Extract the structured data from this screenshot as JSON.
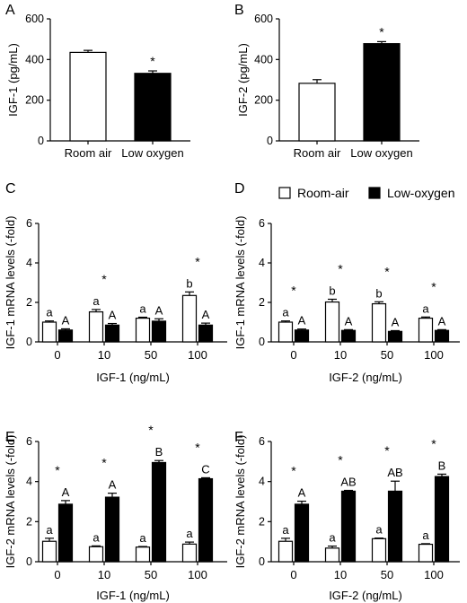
{
  "legend": {
    "items": [
      {
        "label": "Room-air",
        "color": "#ffffff"
      },
      {
        "label": "Low-oxygen",
        "color": "#000000"
      }
    ]
  },
  "chart_data": [
    {
      "panel": "A",
      "type": "bar",
      "categories": [
        "Room air",
        "Low oxygen"
      ],
      "values": [
        435,
        332
      ],
      "errors": [
        10,
        12
      ],
      "colors": [
        "#ffffff",
        "#000000"
      ],
      "ylabel": "IGF-1 (pg/mL)",
      "xlabel": "",
      "ylim": [
        0,
        600
      ],
      "yticks": [
        0,
        200,
        400,
        600
      ],
      "significance": [
        "",
        "*"
      ]
    },
    {
      "panel": "B",
      "type": "bar",
      "categories": [
        "Room air",
        "Low oxygen"
      ],
      "values": [
        283,
        478
      ],
      "errors": [
        18,
        10
      ],
      "colors": [
        "#ffffff",
        "#000000"
      ],
      "ylabel": "IGF-2 (pg/mL)",
      "xlabel": "",
      "ylim": [
        0,
        600
      ],
      "yticks": [
        0,
        200,
        400,
        600
      ],
      "significance": [
        "",
        "*"
      ]
    },
    {
      "panel": "C",
      "type": "bar",
      "categories": [
        "0",
        "10",
        "50",
        "100"
      ],
      "xlabel": "IGF-1 (ng/mL)",
      "ylabel": "IGF-1 mRNA levels (-fold)",
      "ylim": [
        0,
        6
      ],
      "yticks": [
        0,
        2,
        4,
        6
      ],
      "series": [
        {
          "name": "Room-air",
          "values": [
            1.0,
            1.52,
            1.2,
            2.35
          ],
          "errors": [
            0.06,
            0.12,
            0.05,
            0.18
          ],
          "letters": [
            "a",
            "a",
            "a",
            "b"
          ]
        },
        {
          "name": "Low-oxygen",
          "values": [
            0.6,
            0.85,
            1.05,
            0.85
          ],
          "errors": [
            0.06,
            0.08,
            0.12,
            0.1
          ],
          "letters": [
            "A",
            "A",
            "A",
            "A"
          ]
        }
      ],
      "significance": [
        "",
        "*",
        "",
        "*"
      ]
    },
    {
      "panel": "D",
      "type": "bar",
      "categories": [
        "0",
        "10",
        "50",
        "100"
      ],
      "xlabel": "IGF-2 (ng/mL)",
      "ylabel": "IGF-1 mRNA levels (-fold)",
      "ylim": [
        0,
        6
      ],
      "yticks": [
        0,
        2,
        4,
        6
      ],
      "series": [
        {
          "name": "Room-air",
          "values": [
            1.0,
            2.02,
            1.93,
            1.2
          ],
          "errors": [
            0.06,
            0.14,
            0.1,
            0.06
          ],
          "letters": [
            "a",
            "b",
            "b",
            "a"
          ]
        },
        {
          "name": "Low-oxygen",
          "values": [
            0.6,
            0.58,
            0.53,
            0.58
          ],
          "errors": [
            0.05,
            0.04,
            0.04,
            0.04
          ],
          "letters": [
            "A",
            "A",
            "A",
            "A"
          ]
        }
      ],
      "significance": [
        "*",
        "*",
        "*",
        "*"
      ]
    },
    {
      "panel": "E",
      "type": "bar",
      "categories": [
        "0",
        "10",
        "50",
        "100"
      ],
      "xlabel": "IGF-1 (ng/mL)",
      "ylabel": "IGF-2 mRNA levels (-fold)",
      "ylim": [
        0,
        6
      ],
      "yticks": [
        0,
        2,
        4,
        6
      ],
      "series": [
        {
          "name": "Room-air",
          "values": [
            1.02,
            0.75,
            0.73,
            0.88
          ],
          "errors": [
            0.15,
            0.04,
            0.03,
            0.1
          ],
          "letters": [
            "a",
            "a",
            "a",
            "a"
          ]
        },
        {
          "name": "Low-oxygen",
          "values": [
            2.87,
            3.22,
            4.95,
            4.14
          ],
          "errors": [
            0.18,
            0.2,
            0.1,
            0.05
          ],
          "letters": [
            "A",
            "A",
            "B",
            "C"
          ]
        }
      ],
      "significance": [
        "*",
        "*",
        "*",
        "*"
      ]
    },
    {
      "panel": "F",
      "type": "bar",
      "categories": [
        "0",
        "10",
        "50",
        "100"
      ],
      "xlabel": "IGF-2 (ng/mL)",
      "ylabel": "IGF-2 mRNA levels (-fold)",
      "ylim": [
        0,
        6
      ],
      "yticks": [
        0,
        2,
        4,
        6
      ],
      "series": [
        {
          "name": "Room-air",
          "values": [
            1.02,
            0.68,
            1.15,
            0.87
          ],
          "errors": [
            0.15,
            0.1,
            0.03,
            0.03
          ],
          "letters": [
            "a",
            "a",
            "a",
            "a"
          ]
        },
        {
          "name": "Low-oxygen",
          "values": [
            2.87,
            3.52,
            3.52,
            4.25
          ],
          "errors": [
            0.15,
            0.04,
            0.5,
            0.12
          ],
          "letters": [
            "A",
            "AB",
            "AB",
            "B"
          ]
        }
      ],
      "significance": [
        "*",
        "*",
        "*",
        "*"
      ]
    }
  ]
}
